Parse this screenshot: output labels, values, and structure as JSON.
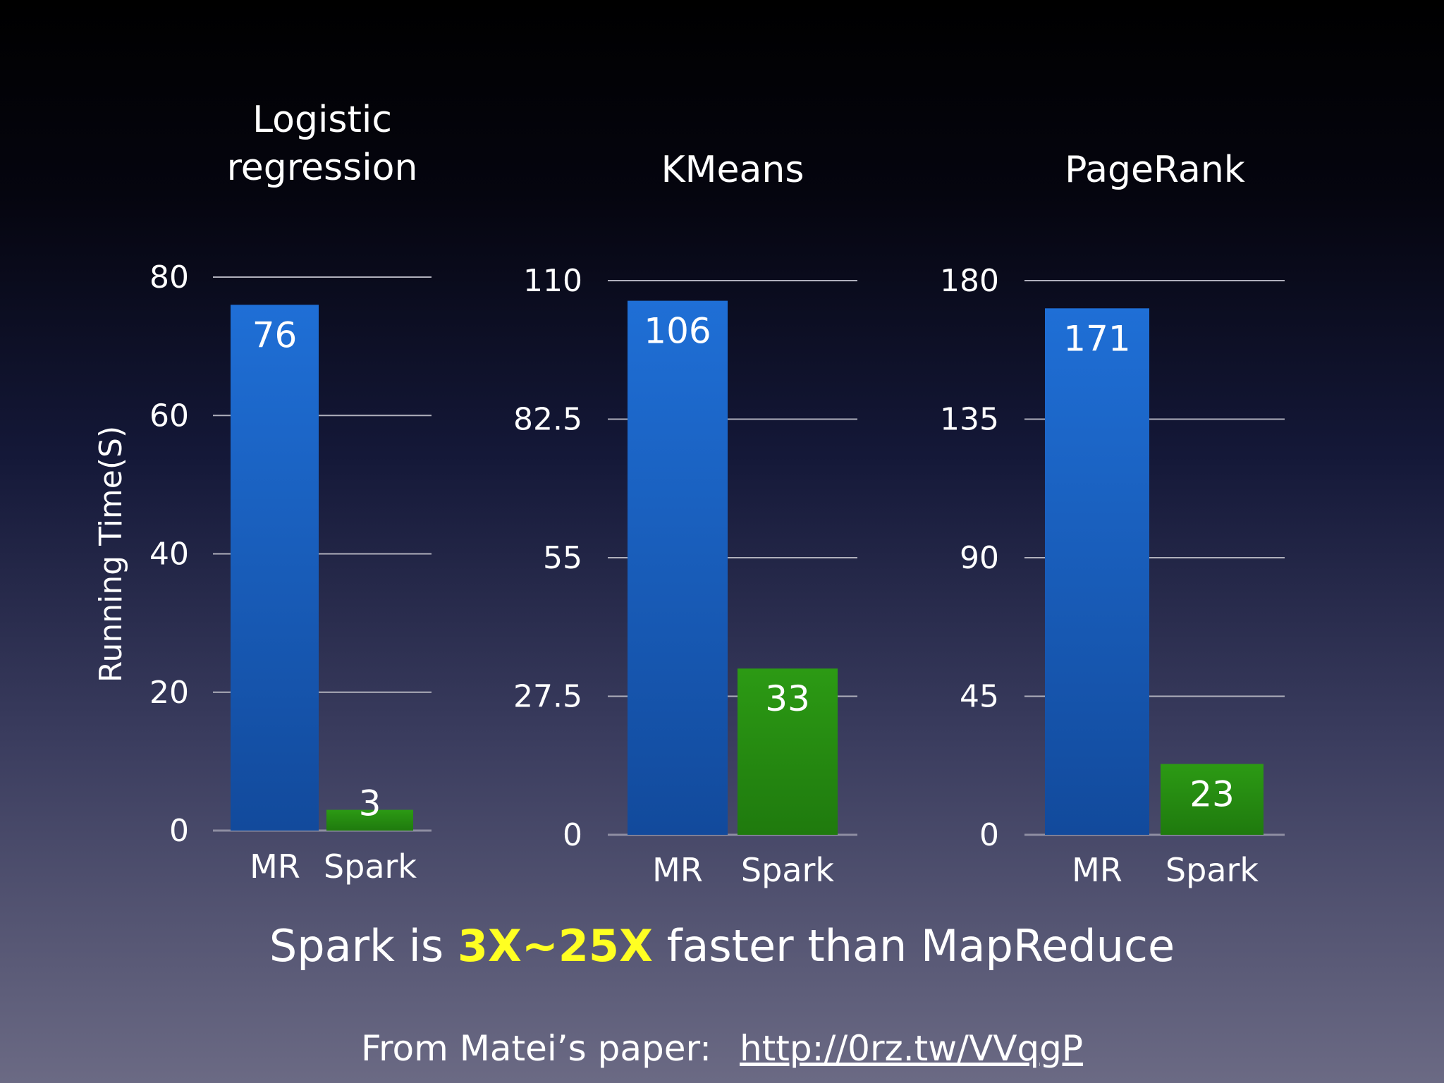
{
  "chart_data": {
    "type": "bar",
    "ylabel": "Running Time(S)",
    "panels": [
      {
        "title_lines": [
          "Logistic",
          "regression"
        ],
        "categories": [
          "MR",
          "Spark"
        ],
        "values": [
          76,
          3
        ],
        "value_labels": [
          "76",
          "3"
        ],
        "ylim": [
          0,
          80
        ],
        "ticks": [
          0,
          20,
          40,
          60,
          80
        ],
        "tick_labels": [
          "0",
          "20",
          "40",
          "60",
          "80"
        ]
      },
      {
        "title_lines": [
          "KMeans"
        ],
        "categories": [
          "MR",
          "Spark"
        ],
        "values": [
          106,
          33
        ],
        "value_labels": [
          "106",
          "33"
        ],
        "ylim": [
          0,
          110
        ],
        "ticks": [
          0,
          27.5,
          55,
          82.5,
          110
        ],
        "tick_labels": [
          "0",
          "27.5",
          "55",
          "82.5",
          "110"
        ]
      },
      {
        "title_lines": [
          "PageRank"
        ],
        "categories": [
          "MR",
          "Spark"
        ],
        "values": [
          171,
          23
        ],
        "value_labels": [
          "171",
          "23"
        ],
        "ylim": [
          0,
          180
        ],
        "ticks": [
          0,
          45,
          90,
          135,
          180
        ],
        "tick_labels": [
          "0",
          "45",
          "90",
          "135",
          "180"
        ]
      }
    ],
    "colors": {
      "mr": "#1e64c8",
      "spark": "#2a8a12"
    },
    "grid": true,
    "legend": "none"
  },
  "headline": {
    "prefix": "Spark is ",
    "highlight": "3X~25X",
    "suffix": " faster than MapReduce"
  },
  "footer": {
    "source": "From Matei’s paper:",
    "link": "http://0rz.tw/VVqgP"
  }
}
